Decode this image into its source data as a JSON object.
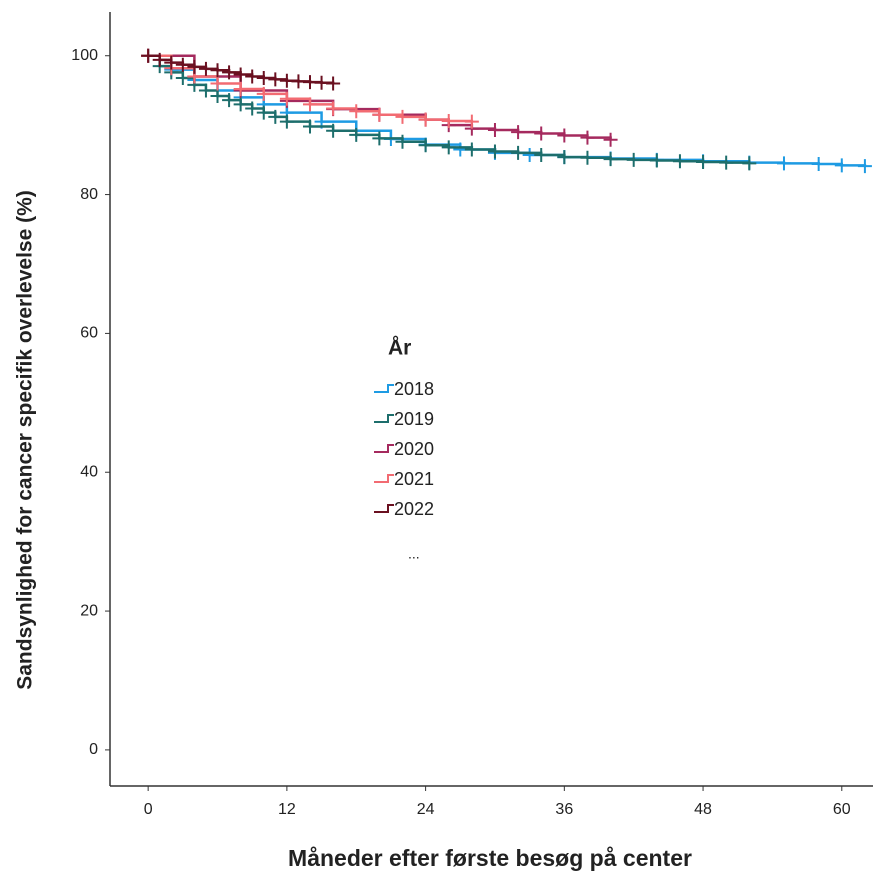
{
  "chart_data": {
    "type": "line",
    "step": true,
    "censor_marks": true,
    "x_label": "Måneder efter første besøg på center",
    "y_label": "Sandsynlighed for cancer specifik overlevelse (%)",
    "legend_title": "År",
    "legend_note": "...",
    "xlim": [
      -3.3,
      62.7
    ],
    "ylim": [
      -5.2,
      106.3
    ],
    "xticks": [
      0,
      12,
      24,
      36,
      48,
      60
    ],
    "yticks": [
      0,
      20,
      40,
      60,
      80,
      100
    ],
    "series": [
      {
        "name": "2018",
        "color": "#1e9be3",
        "x": [
          0,
          2,
          4,
          6,
          8,
          10,
          12,
          15,
          18,
          21,
          24,
          27,
          30,
          33,
          36,
          40,
          44,
          48,
          52,
          55,
          58,
          60,
          62
        ],
        "values": [
          100,
          98,
          96.5,
          95,
          94,
          93,
          91.8,
          90.5,
          89.2,
          88,
          87.2,
          86.5,
          86,
          85.7,
          85.4,
          85.2,
          85,
          84.8,
          84.6,
          84.5,
          84.4,
          84.2,
          84.1
        ]
      },
      {
        "name": "2019",
        "color": "#1d6e6c",
        "x": [
          0,
          1,
          2,
          3,
          4,
          5,
          6,
          7,
          8,
          9,
          10,
          11,
          12,
          14,
          16,
          18,
          20,
          22,
          24,
          26,
          28,
          30,
          32,
          34,
          36,
          38,
          40,
          42,
          44,
          46,
          48,
          50,
          52
        ],
        "values": [
          100,
          98.5,
          97.6,
          96.8,
          95.8,
          95,
          94.2,
          93.6,
          93,
          92.4,
          91.8,
          91.2,
          90.5,
          89.8,
          89.2,
          88.6,
          88.1,
          87.6,
          87.1,
          86.8,
          86.5,
          86.2,
          86,
          85.7,
          85.4,
          85.3,
          85.1,
          85,
          84.9,
          84.8,
          84.7,
          84.6,
          84.5
        ]
      },
      {
        "name": "2020",
        "color": "#a52a5e",
        "x": [
          0,
          4,
          8,
          12,
          16,
          20,
          24,
          26,
          28,
          30,
          32,
          34,
          36,
          38,
          40
        ],
        "values": [
          100,
          97,
          95,
          93.5,
          92.3,
          91.5,
          90.8,
          90,
          89.5,
          89.3,
          89,
          88.8,
          88.5,
          88.2,
          87.9
        ]
      },
      {
        "name": "2021",
        "color": "#f26b72",
        "x": [
          0,
          2,
          4,
          6,
          8,
          10,
          12,
          14,
          16,
          18,
          20,
          22,
          24,
          26,
          28
        ],
        "values": [
          100,
          98.2,
          97,
          96,
          95.2,
          94.5,
          93.8,
          93,
          92.4,
          92,
          91.5,
          91.2,
          90.8,
          90.6,
          90.5
        ]
      },
      {
        "name": "2022",
        "color": "#6a1020",
        "x": [
          0,
          1,
          2,
          3,
          4,
          5,
          6,
          7,
          8,
          9,
          10,
          11,
          12,
          13,
          14,
          15,
          16
        ],
        "values": [
          100,
          99.4,
          99,
          98.7,
          98.4,
          98.1,
          97.9,
          97.6,
          97.3,
          97,
          96.8,
          96.6,
          96.4,
          96.3,
          96.2,
          96.1,
          96
        ]
      }
    ]
  }
}
